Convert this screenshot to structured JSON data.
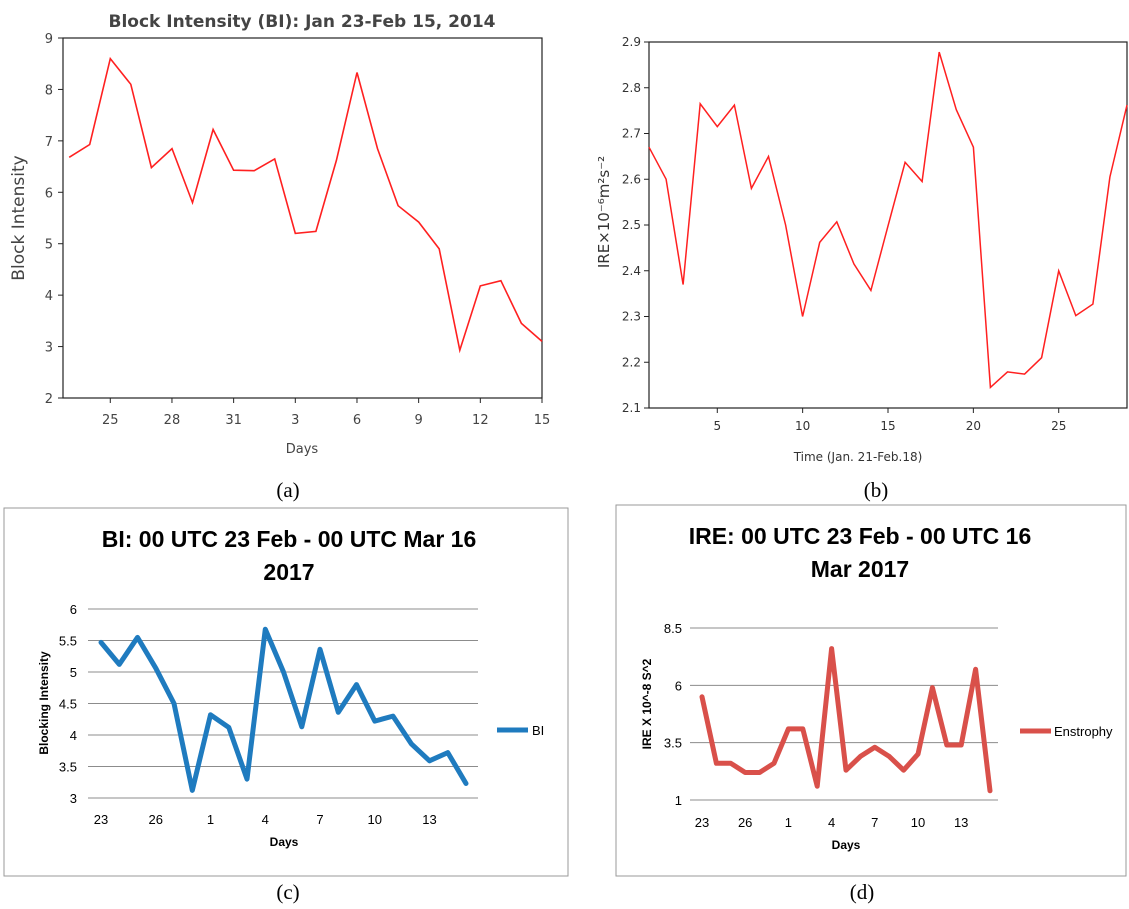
{
  "panels": {
    "a": "(a)",
    "b": "(b)",
    "c": "(c)",
    "d": "(d)"
  },
  "chart_data": [
    {
      "id": "a",
      "type": "line",
      "title": "Block Intensity (BI): Jan 23-Feb 15, 2014",
      "xlabel": "Days",
      "ylabel": "Block Intensity",
      "x_tick_labels": [
        "25",
        "28",
        "31",
        "3",
        "6",
        "9",
        "12",
        "15"
      ],
      "x_tick_positions": [
        2,
        5,
        8,
        11,
        14,
        17,
        20,
        23
      ],
      "xlim": [
        -0.3,
        23
      ],
      "ylim": [
        2,
        9
      ],
      "y_ticks": [
        2,
        3,
        4,
        5,
        6,
        7,
        8,
        9
      ],
      "grid": false,
      "color": "#ff2020",
      "series": [
        {
          "x": [
            0,
            1,
            2,
            3,
            4,
            5,
            6,
            7,
            8,
            9,
            10,
            11,
            12,
            13,
            14,
            15,
            16,
            17,
            18,
            19,
            20,
            21,
            22,
            23
          ],
          "values": [
            6.68,
            6.93,
            8.6,
            8.1,
            6.48,
            6.85,
            5.8,
            7.22,
            6.43,
            6.42,
            6.65,
            5.2,
            5.24,
            6.62,
            8.33,
            6.85,
            5.74,
            5.42,
            4.9,
            2.93,
            4.18,
            4.28,
            3.45,
            3.1
          ]
        }
      ]
    },
    {
      "id": "b",
      "type": "line",
      "title": "",
      "xlabel": "Time (Jan. 21-Feb.18)",
      "ylabel": "IRE×10⁻⁶m²s⁻²",
      "x_ticks": [
        5,
        10,
        15,
        20,
        25
      ],
      "xlim": [
        1,
        29
      ],
      "ylim": [
        2.1,
        2.9
      ],
      "y_tick_labels": [
        "2.1",
        "2.2",
        "2.3",
        "2.4",
        "2.5",
        "2.6",
        "2.7",
        "2.8",
        "2.9"
      ],
      "grid": false,
      "color": "#ff2020",
      "series": [
        {
          "x": [
            1,
            2,
            3,
            4,
            5,
            6,
            7,
            8,
            9,
            10,
            11,
            12,
            13,
            14,
            15,
            16,
            17,
            18,
            19,
            20,
            21,
            22,
            23,
            24,
            25,
            26,
            27,
            28,
            29
          ],
          "values": [
            2.67,
            2.6,
            2.37,
            2.765,
            2.715,
            2.762,
            2.58,
            2.65,
            2.5,
            2.3,
            2.462,
            2.507,
            2.415,
            2.357,
            2.498,
            2.637,
            2.595,
            2.878,
            2.752,
            2.67,
            2.145,
            2.179,
            2.174,
            2.21,
            2.4,
            2.302,
            2.327,
            2.605,
            2.762
          ]
        }
      ]
    },
    {
      "id": "c",
      "type": "line",
      "title": "BI: 00 UTC 23 Feb - 00 UTC Mar 16",
      "title2": "2017",
      "xlabel": "Days",
      "ylabel": "Blocking Intensity",
      "x_tick_labels": [
        "23",
        "26",
        "1",
        "4",
        "7",
        "10",
        "13"
      ],
      "x_tick_positions": [
        0,
        3,
        6,
        9,
        12,
        15,
        18
      ],
      "ylim": [
        3,
        6
      ],
      "y_tick_labels": [
        "3",
        "3.5",
        "4",
        "4.5",
        "5",
        "5.5",
        "6"
      ],
      "grid": true,
      "legend": "right",
      "color": "#1f7bbf",
      "series": [
        {
          "name": "BI",
          "values": [
            5.47,
            5.12,
            5.55,
            5.06,
            4.5,
            3.12,
            4.32,
            4.12,
            3.3,
            5.68,
            5.0,
            4.13,
            5.36,
            4.36,
            4.8,
            4.22,
            4.3,
            3.86,
            3.59,
            3.72,
            3.23
          ]
        }
      ]
    },
    {
      "id": "d",
      "type": "line",
      "title": "IRE: 00 UTC 23 Feb - 00 UTC 16",
      "title2": "Mar 2017",
      "xlabel": "Days",
      "ylabel": "IRE X 10^-8 S^2",
      "x_tick_labels": [
        "23",
        "26",
        "1",
        "4",
        "7",
        "10",
        "13"
      ],
      "x_tick_positions": [
        0,
        3,
        6,
        9,
        12,
        15,
        18
      ],
      "ylim": [
        1,
        8.5
      ],
      "y_tick_labels": [
        "1",
        "3.5",
        "6",
        "8.5"
      ],
      "grid": true,
      "legend": "right",
      "color": "#d9504a",
      "series": [
        {
          "name": "Enstrophy",
          "values": [
            5.5,
            2.6,
            2.6,
            2.2,
            2.2,
            2.6,
            4.1,
            4.1,
            1.6,
            7.6,
            2.3,
            2.9,
            3.3,
            2.9,
            2.3,
            3.0,
            5.9,
            3.4,
            3.4,
            6.7,
            1.4
          ]
        }
      ]
    }
  ]
}
